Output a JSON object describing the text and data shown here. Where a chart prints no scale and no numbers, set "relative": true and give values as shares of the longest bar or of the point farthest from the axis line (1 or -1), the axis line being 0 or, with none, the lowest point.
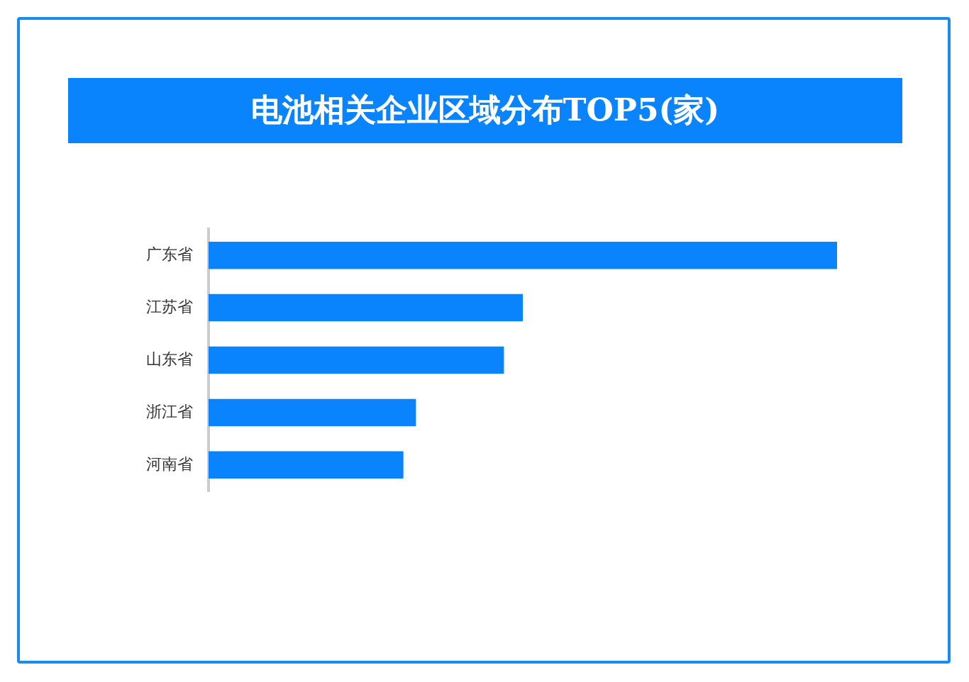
{
  "chart_data": {
    "type": "bar",
    "title": "电池相关企业区域分布TOP5(家)",
    "orientation": "horizontal",
    "relative": true,
    "categories": [
      "广东省",
      "江苏省",
      "山东省",
      "浙江省",
      "河南省"
    ],
    "values": [
      1,
      0.5,
      0.47,
      0.33,
      0.31
    ],
    "color": "#0a84fc"
  }
}
